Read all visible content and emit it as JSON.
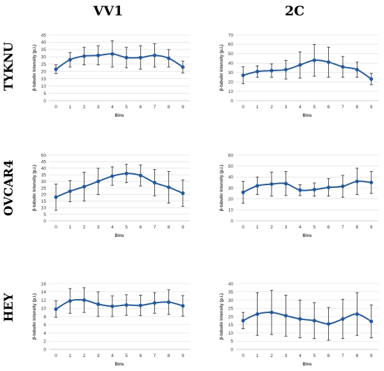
{
  "column_titles": [
    "VV1",
    "2C"
  ],
  "row_titles": [
    "TYKNU",
    "OVCAR4",
    "HEY"
  ],
  "line_color": "#1f5aa6",
  "chart_data": [
    {
      "type": "line",
      "row": 0,
      "col": 0,
      "xlabel": "Bins",
      "ylabel": "β-tubulin intensity (p.i.)",
      "ylim": [
        0,
        45
      ],
      "yticks": [
        0,
        5,
        10,
        15,
        20,
        25,
        30,
        35,
        40,
        45
      ],
      "x": [
        0,
        1,
        2,
        3,
        4,
        5,
        6,
        7,
        8,
        9
      ],
      "y": [
        21.5,
        28,
        30.5,
        31,
        32,
        29.5,
        29.5,
        31,
        29,
        23
      ],
      "err": [
        3,
        5,
        6,
        6.5,
        9,
        7,
        8,
        8,
        6,
        4
      ]
    },
    {
      "type": "line",
      "row": 0,
      "col": 1,
      "xlabel": "Bins",
      "ylabel": "β-tubulin intensity (p.i.)",
      "ylim": [
        0,
        70
      ],
      "yticks": [
        0,
        10,
        20,
        30,
        40,
        50,
        60,
        70
      ],
      "x": [
        0,
        1,
        2,
        3,
        4,
        5,
        6,
        7,
        8,
        9
      ],
      "y": [
        27,
        31,
        32,
        33,
        38,
        43,
        41,
        36,
        33,
        23
      ],
      "err": [
        9,
        6,
        7,
        10,
        14,
        17,
        16,
        11,
        8,
        6
      ]
    },
    {
      "type": "line",
      "row": 1,
      "col": 0,
      "xlabel": "Bins",
      "ylabel": "β-tubulin intensity (p.i.)",
      "ylim": [
        0,
        50
      ],
      "yticks": [
        0,
        5,
        10,
        15,
        20,
        25,
        30,
        35,
        40,
        45,
        50
      ],
      "x": [
        0,
        1,
        2,
        3,
        4,
        5,
        6,
        7,
        8,
        9
      ],
      "y": [
        18,
        22.5,
        26,
        30,
        34,
        36,
        34.5,
        29,
        25.5,
        21
      ],
      "err": [
        10,
        8,
        11,
        10,
        7,
        7,
        8,
        10,
        12,
        10
      ]
    },
    {
      "type": "line",
      "row": 1,
      "col": 1,
      "xlabel": "Bins",
      "ylabel": "β-tubulin intensity (p.i.)",
      "ylim": [
        0,
        60
      ],
      "yticks": [
        0,
        10,
        20,
        30,
        40,
        50,
        60
      ],
      "x": [
        0,
        1,
        2,
        3,
        4,
        5,
        6,
        7,
        8,
        9
      ],
      "y": [
        26,
        32,
        33.5,
        34,
        28,
        28.5,
        30.5,
        31.5,
        36,
        35
      ],
      "err": [
        10,
        8,
        11,
        11,
        5,
        6,
        8,
        10,
        12,
        10
      ]
    },
    {
      "type": "line",
      "row": 2,
      "col": 0,
      "xlabel": "Bins",
      "ylabel": "β-tubulin intensity (p.i.)",
      "ylim": [
        0,
        16
      ],
      "yticks": [
        0,
        2,
        4,
        6,
        8,
        10,
        12,
        14,
        16
      ],
      "x": [
        0,
        1,
        2,
        3,
        4,
        5,
        6,
        7,
        8,
        9
      ],
      "y": [
        9.8,
        11.8,
        12,
        11,
        10.5,
        10.8,
        10.7,
        11.3,
        11.5,
        10.6
      ],
      "err": [
        2,
        3,
        3,
        3,
        2.5,
        2.5,
        2.5,
        2.5,
        3,
        2.5
      ]
    },
    {
      "type": "line",
      "row": 2,
      "col": 1,
      "xlabel": "Bins",
      "ylabel": "β-tubulin intensity (p.i.)",
      "ylim": [
        0,
        40
      ],
      "yticks": [
        0,
        5,
        10,
        15,
        20,
        25,
        30,
        35,
        40
      ],
      "x": [
        0,
        1,
        2,
        3,
        4,
        5,
        6,
        7,
        8,
        9
      ],
      "y": [
        17.5,
        21.5,
        22.5,
        20.5,
        18.5,
        17.5,
        15.5,
        18.5,
        21.5,
        17
      ],
      "err": [
        5,
        13,
        13.5,
        12.5,
        11.5,
        11,
        10,
        12,
        13,
        10
      ]
    }
  ]
}
